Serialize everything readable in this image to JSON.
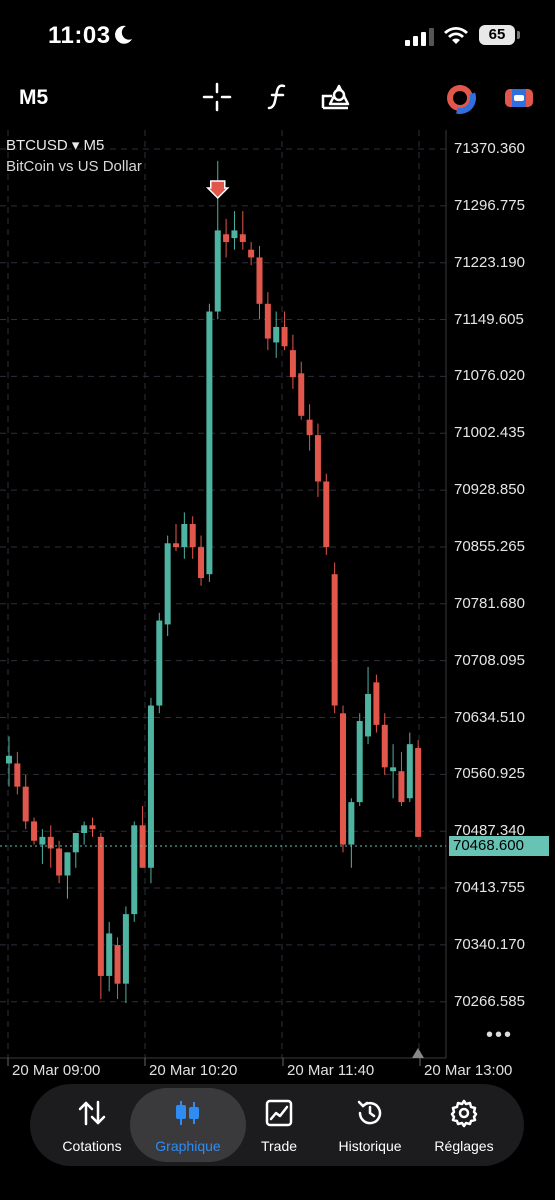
{
  "status_bar": {
    "time": "11:03",
    "battery": "65"
  },
  "toolbar": {
    "timeframe": "M5"
  },
  "chart": {
    "symbol": "BTCUSD",
    "symbol_timeframe": "M5",
    "description": "BitCoin vs US Dollar",
    "price_labels": [
      "71370.360",
      "71296.775",
      "71223.190",
      "71149.605",
      "71076.020",
      "71002.435",
      "70928.850",
      "70855.265",
      "70781.680",
      "70708.095",
      "70634.510",
      "70560.925",
      "70487.340",
      "70413.755",
      "70340.170",
      "70266.585"
    ],
    "current_price": "70468.600",
    "time_labels": [
      "20 Mar 09:00",
      "20 Mar 10:20",
      "20 Mar 11:40",
      "20 Mar 13:00"
    ],
    "colors": {
      "up": "#4fb3a2",
      "down": "#e2574c",
      "grid": "#2a2f3a",
      "current": "#67c4b4"
    }
  },
  "chart_data": {
    "type": "candlestick",
    "symbol": "BTCUSD",
    "timeframe": "M5",
    "ylim": [
      70230,
      71410
    ],
    "x_labels": [
      "20 Mar 09:00",
      "20 Mar 10:20",
      "20 Mar 11:40",
      "20 Mar 13:00"
    ],
    "candles": [
      {
        "o": 70575,
        "h": 70610,
        "l": 70545,
        "c": 70585
      },
      {
        "o": 70575,
        "h": 70590,
        "l": 70535,
        "c": 70545
      },
      {
        "o": 70545,
        "h": 70560,
        "l": 70490,
        "c": 70500
      },
      {
        "o": 70500,
        "h": 70505,
        "l": 70470,
        "c": 70475
      },
      {
        "o": 70470,
        "h": 70490,
        "l": 70445,
        "c": 70480
      },
      {
        "o": 70480,
        "h": 70495,
        "l": 70440,
        "c": 70465
      },
      {
        "o": 70465,
        "h": 70475,
        "l": 70420,
        "c": 70430
      },
      {
        "o": 70430,
        "h": 70460,
        "l": 70400,
        "c": 70460
      },
      {
        "o": 70460,
        "h": 70485,
        "l": 70440,
        "c": 70485
      },
      {
        "o": 70485,
        "h": 70500,
        "l": 70470,
        "c": 70495
      },
      {
        "o": 70495,
        "h": 70505,
        "l": 70480,
        "c": 70490
      },
      {
        "o": 70480,
        "h": 70485,
        "l": 70270,
        "c": 70300
      },
      {
        "o": 70300,
        "h": 70370,
        "l": 70280,
        "c": 70355
      },
      {
        "o": 70340,
        "h": 70350,
        "l": 70270,
        "c": 70290
      },
      {
        "o": 70290,
        "h": 70390,
        "l": 70265,
        "c": 70380
      },
      {
        "o": 70380,
        "h": 70500,
        "l": 70370,
        "c": 70495
      },
      {
        "o": 70495,
        "h": 70520,
        "l": 70440,
        "c": 70440
      },
      {
        "o": 70440,
        "h": 70660,
        "l": 70420,
        "c": 70650
      },
      {
        "o": 70650,
        "h": 70770,
        "l": 70640,
        "c": 70760
      },
      {
        "o": 70755,
        "h": 70870,
        "l": 70740,
        "c": 70860
      },
      {
        "o": 70860,
        "h": 70885,
        "l": 70850,
        "c": 70855
      },
      {
        "o": 70855,
        "h": 70900,
        "l": 70840,
        "c": 70885
      },
      {
        "o": 70885,
        "h": 70895,
        "l": 70840,
        "c": 70855
      },
      {
        "o": 70855,
        "h": 70870,
        "l": 70805,
        "c": 70815
      },
      {
        "o": 70820,
        "h": 71170,
        "l": 70810,
        "c": 71160
      },
      {
        "o": 71160,
        "h": 71355,
        "l": 71150,
        "c": 71265
      },
      {
        "o": 71260,
        "h": 71280,
        "l": 71230,
        "c": 71250
      },
      {
        "o": 71255,
        "h": 71290,
        "l": 71240,
        "c": 71265
      },
      {
        "o": 71260,
        "h": 71290,
        "l": 71240,
        "c": 71250
      },
      {
        "o": 71240,
        "h": 71250,
        "l": 71220,
        "c": 71230
      },
      {
        "o": 71230,
        "h": 71245,
        "l": 71150,
        "c": 71170
      },
      {
        "o": 71170,
        "h": 71185,
        "l": 71110,
        "c": 71125
      },
      {
        "o": 71120,
        "h": 71160,
        "l": 71100,
        "c": 71140
      },
      {
        "o": 71140,
        "h": 71160,
        "l": 71110,
        "c": 71115
      },
      {
        "o": 71110,
        "h": 71130,
        "l": 71060,
        "c": 71075
      },
      {
        "o": 71080,
        "h": 71095,
        "l": 71020,
        "c": 71025
      },
      {
        "o": 71020,
        "h": 71040,
        "l": 70980,
        "c": 71000
      },
      {
        "o": 71000,
        "h": 71015,
        "l": 70920,
        "c": 70940
      },
      {
        "o": 70940,
        "h": 70950,
        "l": 70845,
        "c": 70855
      },
      {
        "o": 70820,
        "h": 70835,
        "l": 70640,
        "c": 70650
      },
      {
        "o": 70640,
        "h": 70650,
        "l": 70460,
        "c": 70470
      },
      {
        "o": 70470,
        "h": 70530,
        "l": 70440,
        "c": 70525
      },
      {
        "o": 70525,
        "h": 70640,
        "l": 70520,
        "c": 70630
      },
      {
        "o": 70610,
        "h": 70700,
        "l": 70600,
        "c": 70665
      },
      {
        "o": 70680,
        "h": 70690,
        "l": 70615,
        "c": 70625
      },
      {
        "o": 70625,
        "h": 70640,
        "l": 70560,
        "c": 70570
      },
      {
        "o": 70565,
        "h": 70600,
        "l": 70530,
        "c": 70570
      },
      {
        "o": 70565,
        "h": 70590,
        "l": 70520,
        "c": 70525
      },
      {
        "o": 70530,
        "h": 70615,
        "l": 70525,
        "c": 70600
      },
      {
        "o": 70595,
        "h": 70605,
        "l": 70480,
        "c": 70480
      }
    ]
  },
  "nav": {
    "items": [
      {
        "label": "Cotations"
      },
      {
        "label": "Graphique"
      },
      {
        "label": "Trade"
      },
      {
        "label": "Historique"
      },
      {
        "label": "Réglages"
      }
    ]
  }
}
